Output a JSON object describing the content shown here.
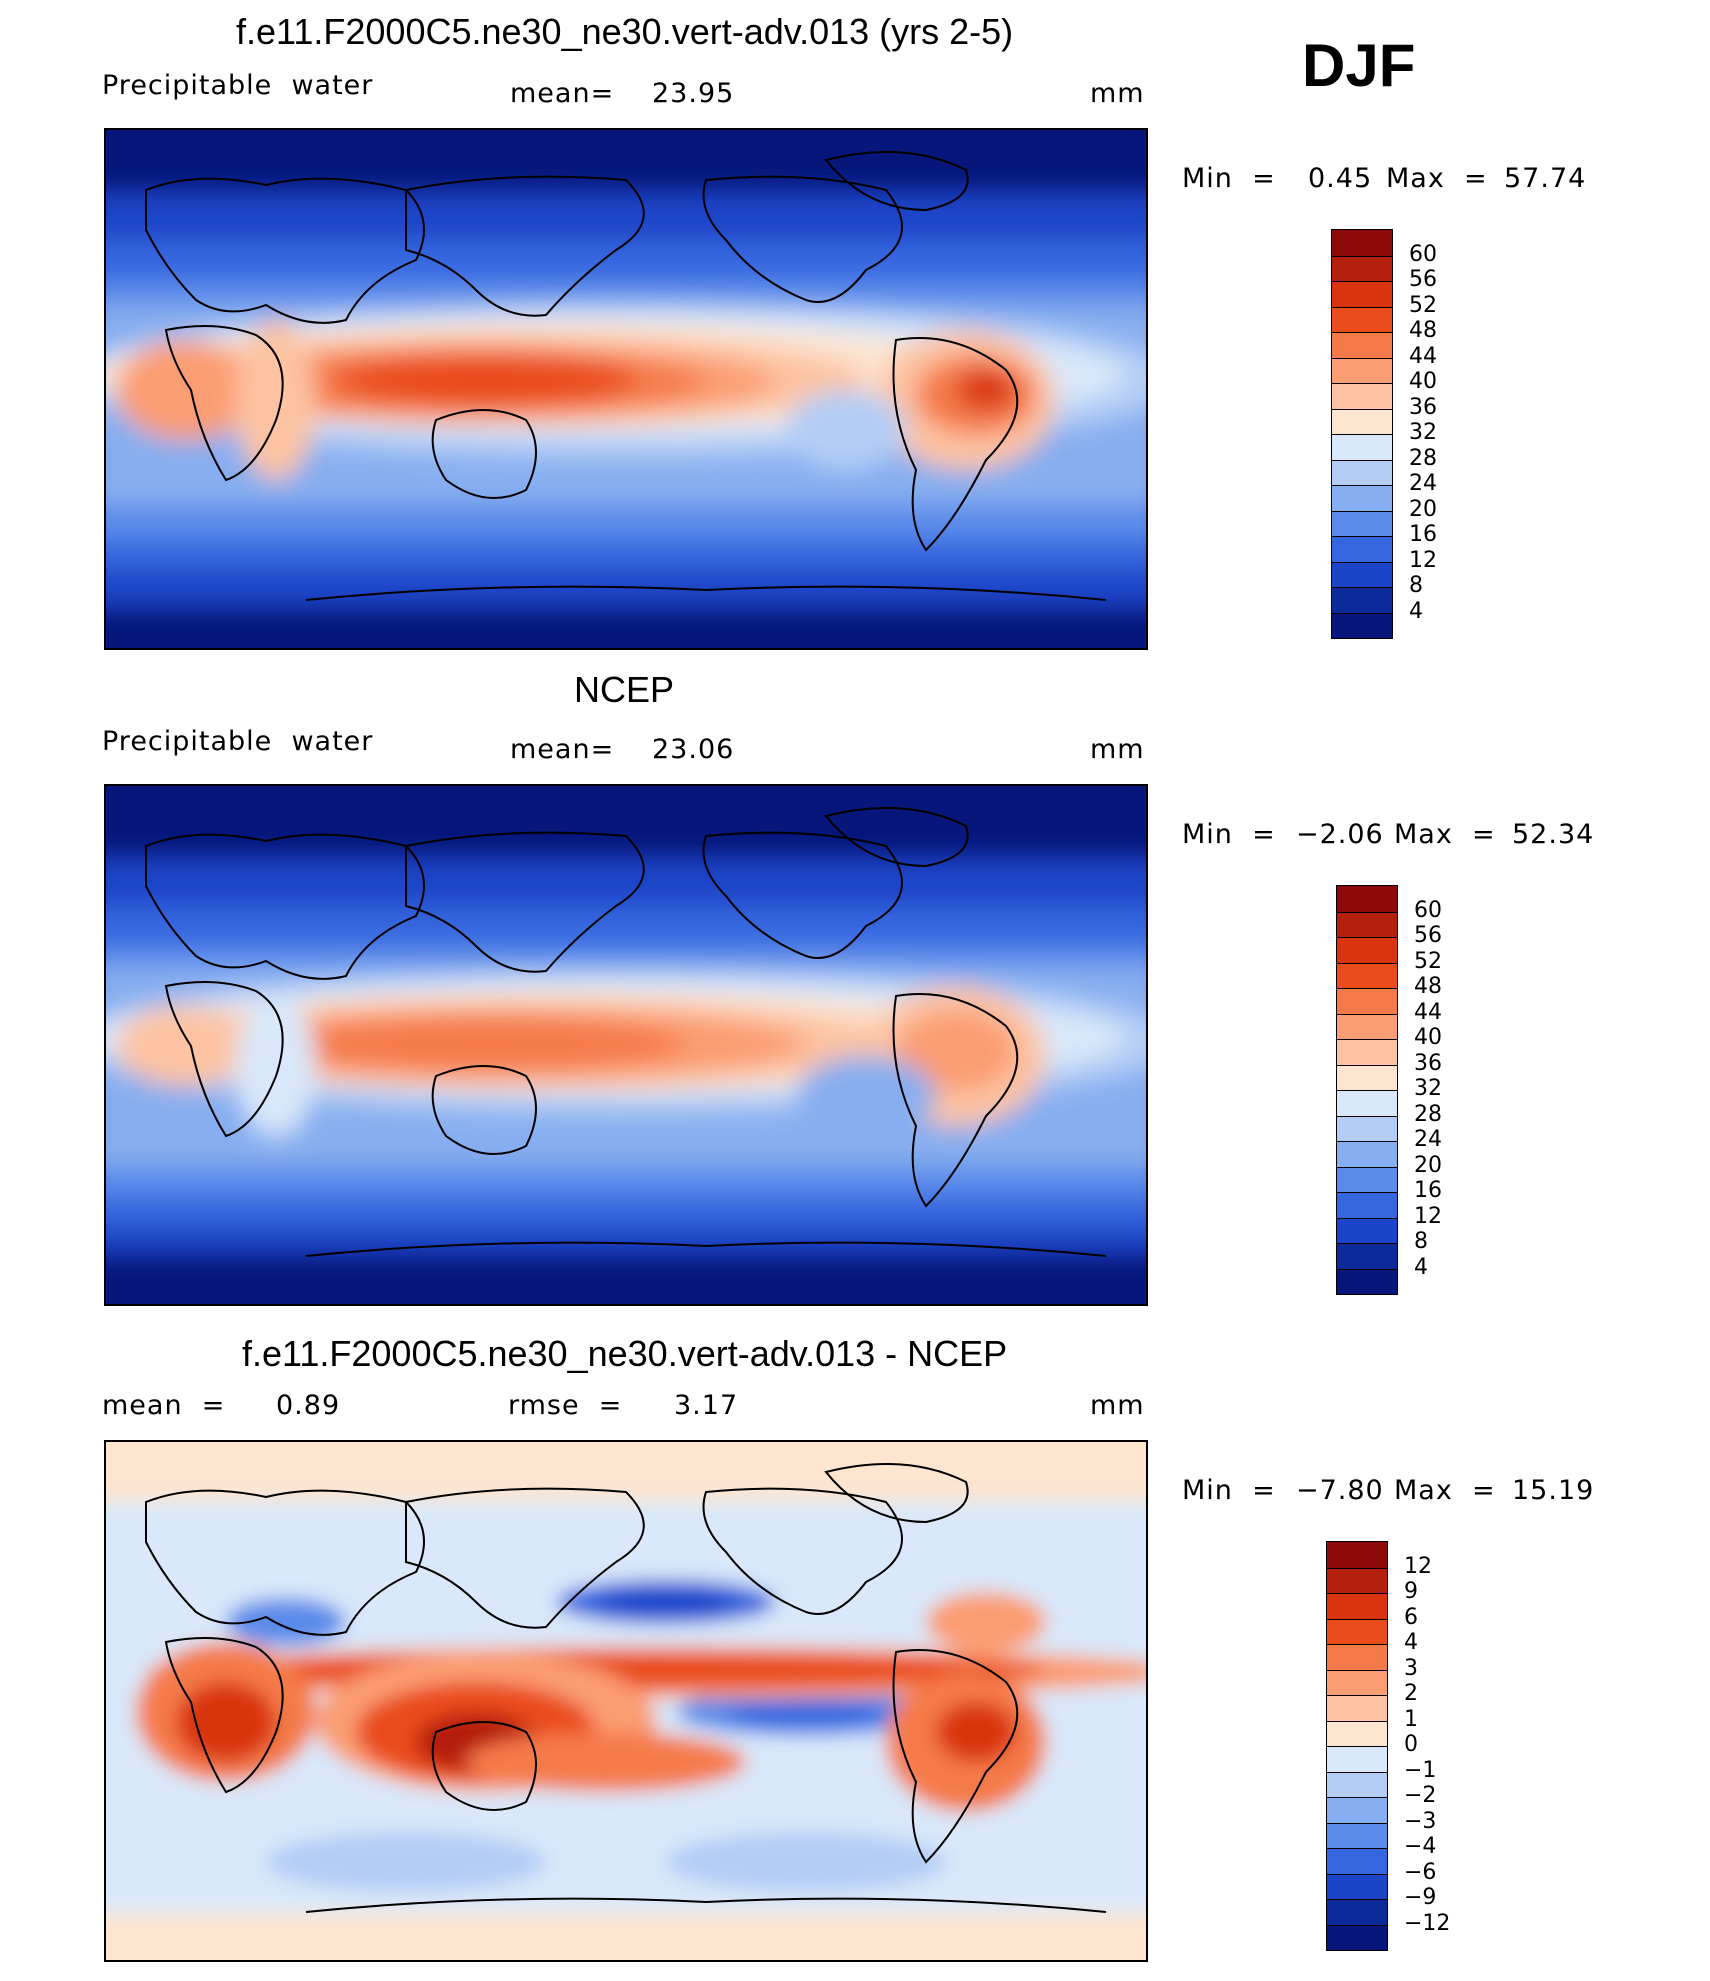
{
  "season": "DJF",
  "panels": [
    {
      "title": "f.e11.F2000C5.ne30_ne30.vert-adv.013 (yrs 2-5)",
      "left_label": "Precipitable  water",
      "stat1_label": "mean=",
      "stat1_value": "23.95",
      "stat2_label": "",
      "stat2_value": "",
      "units": "mm",
      "min_label": "Min  =",
      "min_value": "0.45",
      "max_label": "Max  =",
      "max_value": "57.74",
      "colorbar": {
        "labels": [
          "60",
          "56",
          "52",
          "48",
          "44",
          "40",
          "36",
          "32",
          "28",
          "24",
          "20",
          "16",
          "12",
          "8",
          "4"
        ],
        "colors": [
          "#8c0a0a",
          "#b51f0d",
          "#d9340f",
          "#ea4c1c",
          "#f57a4a",
          "#fb9d72",
          "#fdc3a2",
          "#fde5d0",
          "#d9e8fa",
          "#b3cdf6",
          "#87aef0",
          "#5a8bea",
          "#3566df",
          "#1a45c8",
          "#0c2a9a",
          "#06167a"
        ]
      },
      "map_variable": "precipitable-water-model"
    },
    {
      "title": "NCEP",
      "left_label": "Precipitable  water",
      "stat1_label": "mean=",
      "stat1_value": "23.06",
      "stat2_label": "",
      "stat2_value": "",
      "units": "mm",
      "min_label": "Min  =",
      "min_value": "−2.06",
      "max_label": "Max  =",
      "max_value": "52.34",
      "colorbar": {
        "labels": [
          "60",
          "56",
          "52",
          "48",
          "44",
          "40",
          "36",
          "32",
          "28",
          "24",
          "20",
          "16",
          "12",
          "8",
          "4"
        ],
        "colors": [
          "#8c0a0a",
          "#b51f0d",
          "#d9340f",
          "#ea4c1c",
          "#f57a4a",
          "#fb9d72",
          "#fdc3a2",
          "#fde5d0",
          "#d9e8fa",
          "#b3cdf6",
          "#87aef0",
          "#5a8bea",
          "#3566df",
          "#1a45c8",
          "#0c2a9a",
          "#06167a"
        ]
      },
      "map_variable": "precipitable-water-ncep"
    },
    {
      "title": "f.e11.F2000C5.ne30_ne30.vert-adv.013 - NCEP",
      "left_label": "mean  =",
      "left_value": "0.89",
      "stat1_label": "rmse  =",
      "stat1_value": "3.17",
      "units": "mm",
      "min_label": "Min  =",
      "min_value": "−7.80",
      "max_label": "Max  =",
      "max_value": "15.19",
      "colorbar": {
        "labels": [
          "12",
          "9",
          "6",
          "4",
          "3",
          "2",
          "1",
          "0",
          "−1",
          "−2",
          "−3",
          "−4",
          "−6",
          "−9",
          "−12"
        ],
        "colors": [
          "#8c0a0a",
          "#b51f0d",
          "#d9340f",
          "#ea4c1c",
          "#f57a4a",
          "#fb9d72",
          "#fdc3a2",
          "#fde5d0",
          "#d9e8fa",
          "#b3cdf6",
          "#87aef0",
          "#5a8bea",
          "#3566df",
          "#1a45c8",
          "#0c2a9a",
          "#06167a"
        ]
      },
      "map_variable": "precipitable-water-difference"
    }
  ]
}
